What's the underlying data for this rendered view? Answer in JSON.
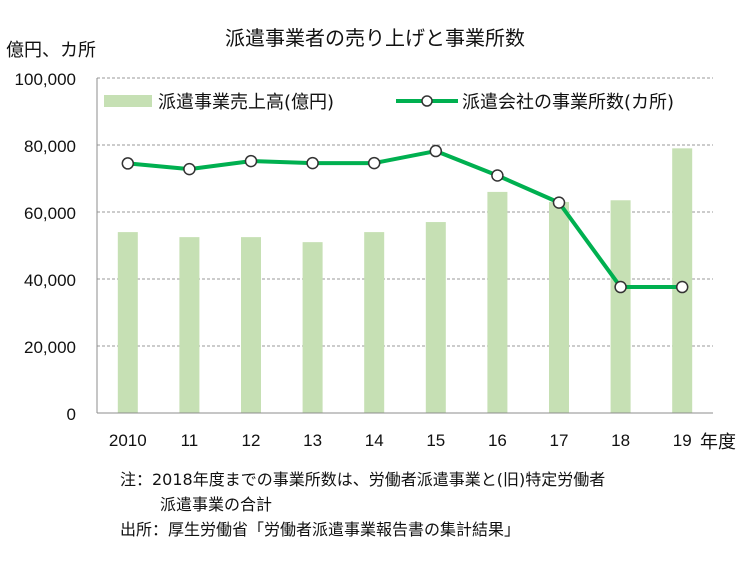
{
  "chart_data": {
    "type": "bar+line",
    "title": "派遣事業者の売り上げと事業所数",
    "y_unit_label": "億円、カ所",
    "x_unit_label": "年度",
    "categories": [
      "2010",
      "11",
      "12",
      "13",
      "14",
      "15",
      "16",
      "17",
      "18",
      "19"
    ],
    "ylim": [
      0,
      100000
    ],
    "yticks": [
      "0",
      "20,000",
      "40,000",
      "60,000",
      "80,000",
      "100,000"
    ],
    "grid": true,
    "legend_position": "top",
    "series": [
      {
        "name": "派遣事業売上高(億円)",
        "type": "bar",
        "color": "#c6e0b4",
        "values": [
          54000,
          52500,
          52500,
          51000,
          54000,
          57000,
          66000,
          63000,
          63500,
          79000
        ]
      },
      {
        "name": "派遣会社の事業所数(カ所)",
        "type": "line",
        "color": "#00b050",
        "values": [
          74500,
          72800,
          75200,
          74600,
          74600,
          78200,
          70900,
          62800,
          37600,
          37600
        ]
      }
    ]
  },
  "notes": {
    "line1": "注：2018年度までの事業所数は、労働者派遣事業と(旧)特定労働者",
    "line2": "派遣事業の合計",
    "source": "出所：厚生労働省「労働者派遣事業報告書の集計結果」"
  }
}
